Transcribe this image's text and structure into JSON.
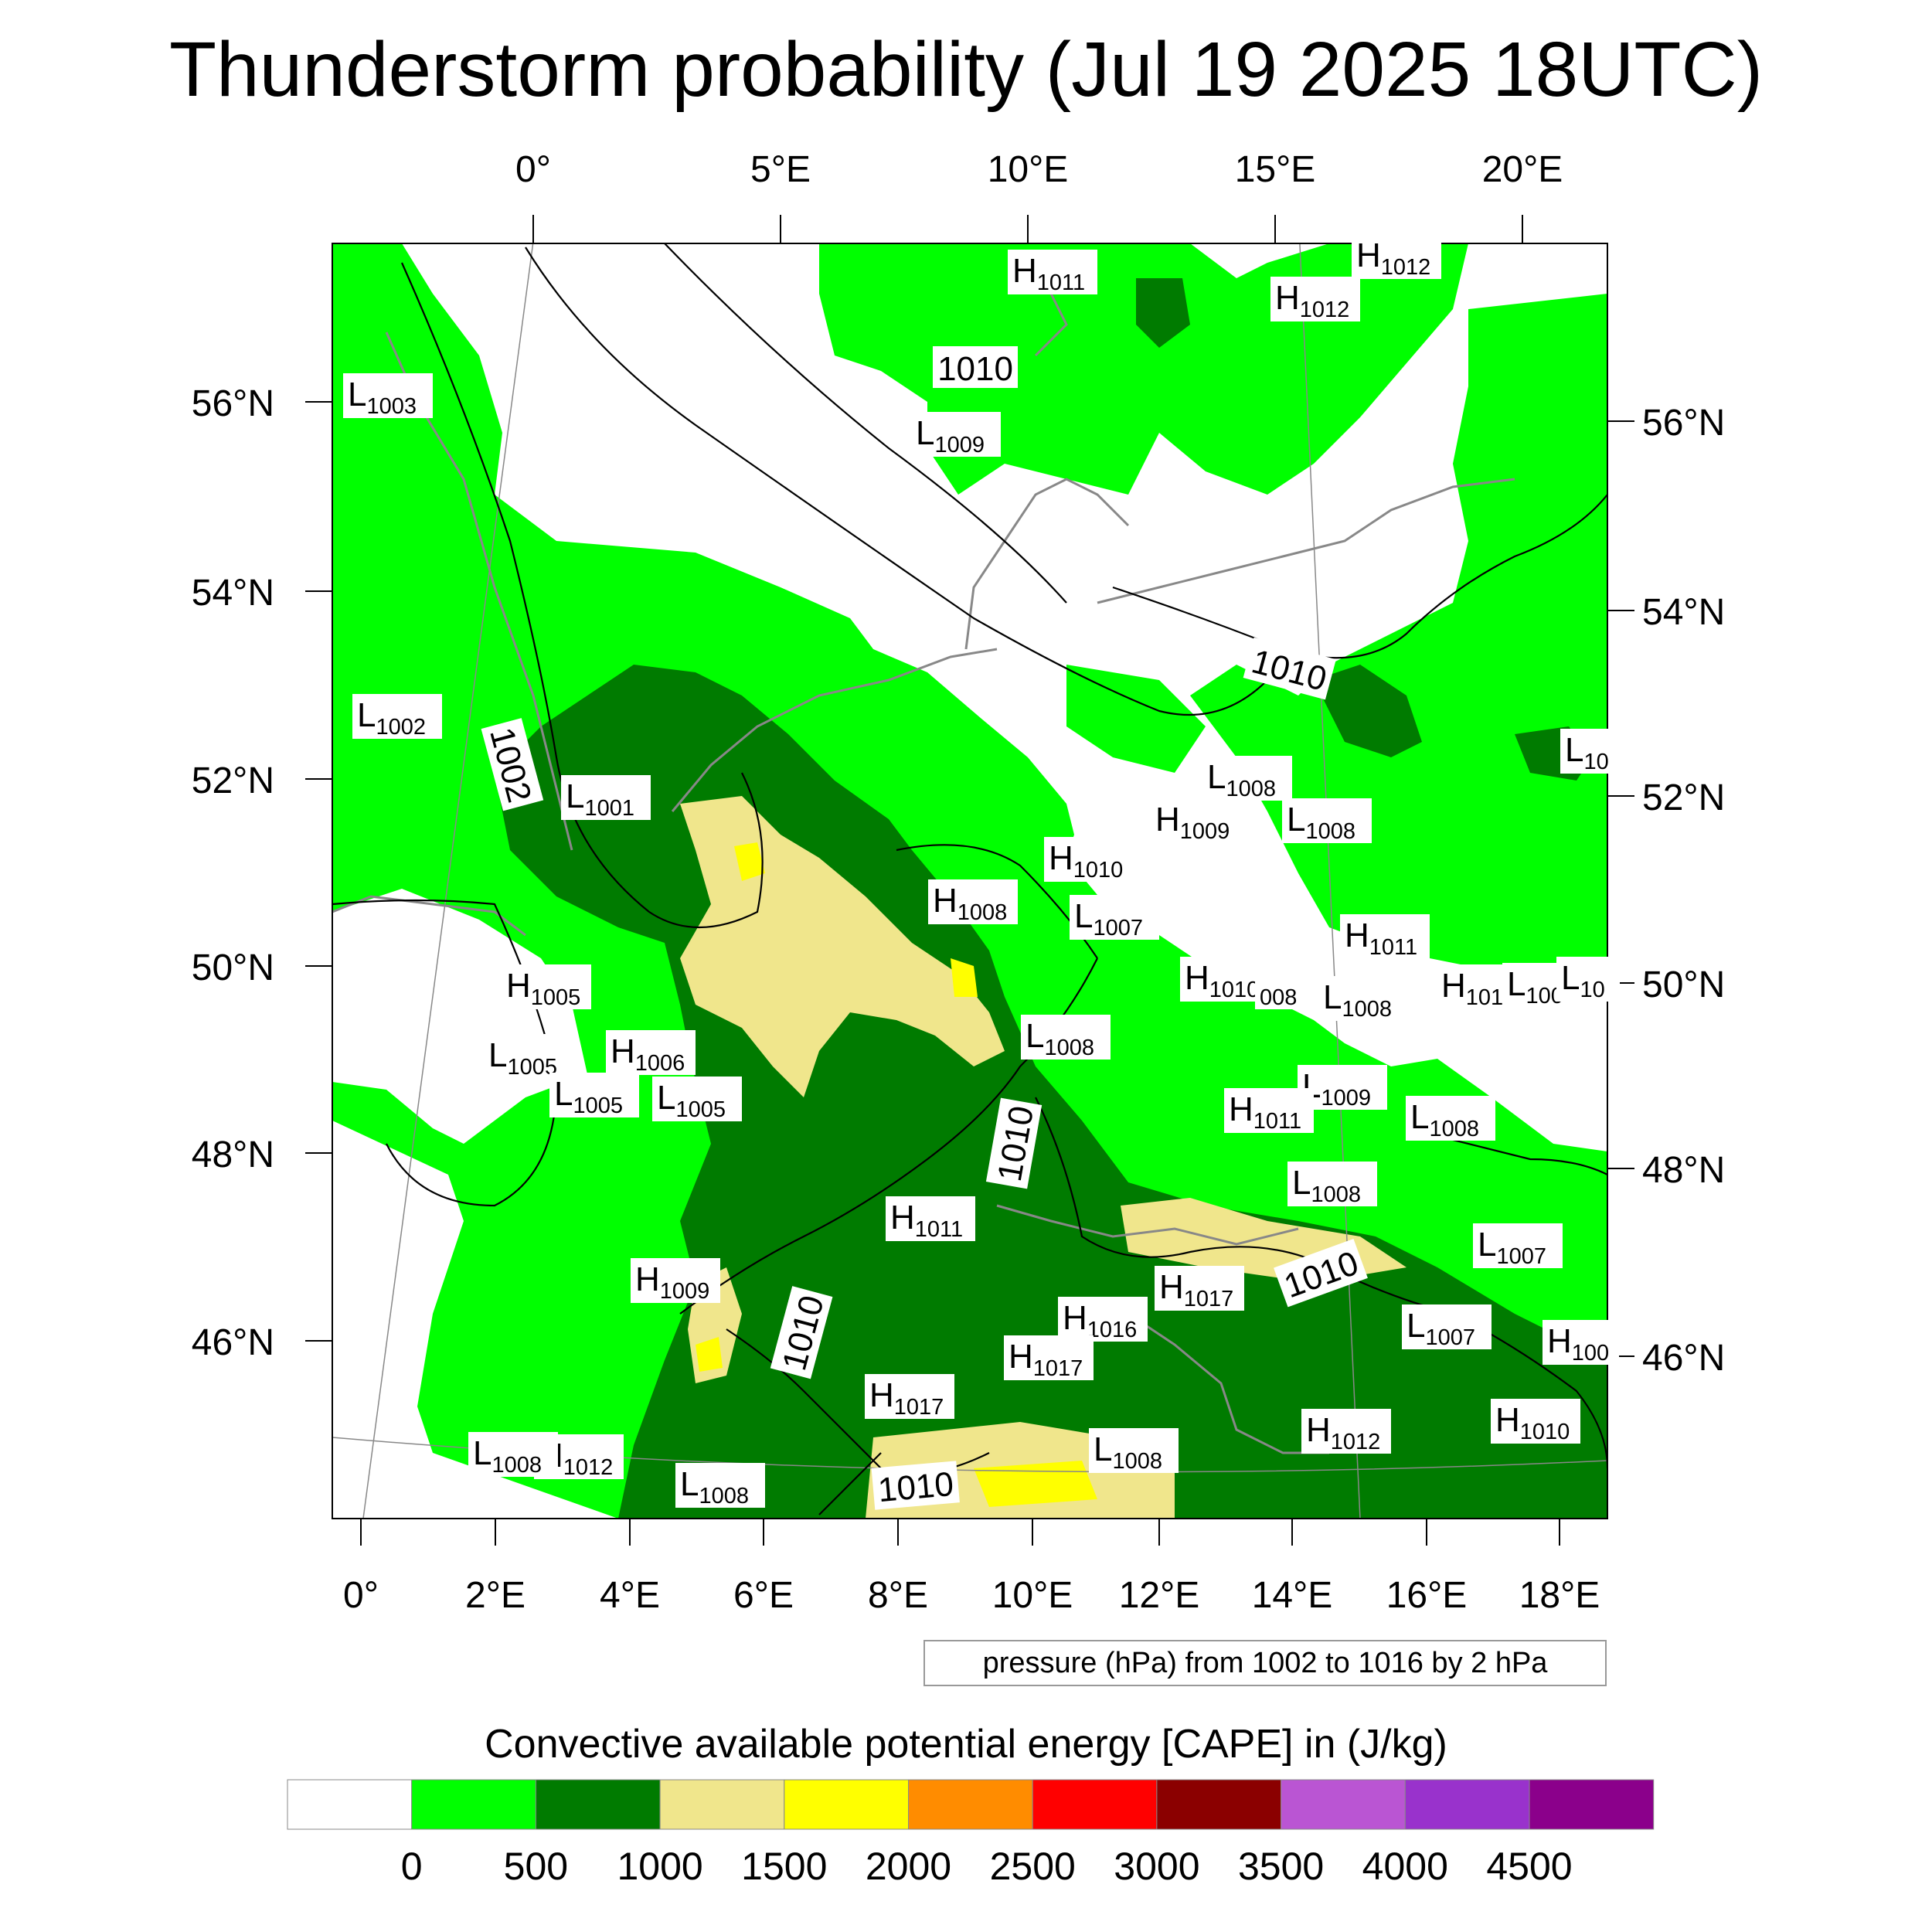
{
  "title": "Thunderstorm probability (Jul 19 2025 18UTC)",
  "colors": {
    "land_outline": "#888888",
    "pressure_contour": "#000000",
    "cape_0_500": "#00ff00",
    "cape_500_1000": "#007b00",
    "cape_1000_1500": "#f0e68c",
    "cape_1500_2000": "#ffff00"
  },
  "map": {
    "top_lon_labels": [
      "0°",
      "5°E",
      "10°E",
      "15°E",
      "20°E"
    ],
    "left_lat_labels": [
      "56°N",
      "54°N",
      "52°N",
      "50°N",
      "48°N",
      "46°N"
    ],
    "right_lat_labels": [
      "56°N",
      "54°N",
      "52°N",
      "50°N",
      "48°N",
      "46°N"
    ],
    "bottom_lon_labels": [
      "0°",
      "2°E",
      "4°E",
      "6°E",
      "8°E",
      "10°E",
      "12°E",
      "14°E",
      "16°E",
      "18°E"
    ],
    "pressure_centers": [
      {
        "letter": "H",
        "value": "1011"
      },
      {
        "letter": "H",
        "value": "1012"
      },
      {
        "letter": "H",
        "value": "1012"
      },
      {
        "letter": "L",
        "value": "1003"
      },
      {
        "letter": "L",
        "value": "1009"
      },
      {
        "letter": "L",
        "value": "1002"
      },
      {
        "letter": "L",
        "value": "1001"
      },
      {
        "letter": "L",
        "value": "1008"
      },
      {
        "letter": "H",
        "value": "1009"
      },
      {
        "letter": "L",
        "value": "1008"
      },
      {
        "letter": "L",
        "value": "10"
      },
      {
        "letter": "H",
        "value": "1010"
      },
      {
        "letter": "H",
        "value": "1008"
      },
      {
        "letter": "L",
        "value": "1007"
      },
      {
        "letter": "H",
        "value": "1011"
      },
      {
        "letter": "H",
        "value": "1010"
      },
      {
        "letter": "",
        "value": "008"
      },
      {
        "letter": "L",
        "value": "1008"
      },
      {
        "letter": "H",
        "value": "101"
      },
      {
        "letter": "L",
        "value": "100"
      },
      {
        "letter": "L",
        "value": "10"
      },
      {
        "letter": "H",
        "value": "1005"
      },
      {
        "letter": "L",
        "value": "1005"
      },
      {
        "letter": "H",
        "value": "1006"
      },
      {
        "letter": "L",
        "value": "1005"
      },
      {
        "letter": "L",
        "value": "1005"
      },
      {
        "letter": "L",
        "value": "1008"
      },
      {
        "letter": "L",
        "value": "1009"
      },
      {
        "letter": "H",
        "value": "1011"
      },
      {
        "letter": "L",
        "value": "1008"
      },
      {
        "letter": "L",
        "value": "1008"
      },
      {
        "letter": "H",
        "value": "1011"
      },
      {
        "letter": "L",
        "value": "1007"
      },
      {
        "letter": "H",
        "value": "1009"
      },
      {
        "letter": "H",
        "value": "1017"
      },
      {
        "letter": "H",
        "value": "1016"
      },
      {
        "letter": "L",
        "value": "1007"
      },
      {
        "letter": "H",
        "value": "100"
      },
      {
        "letter": "H",
        "value": "1017"
      },
      {
        "letter": "H",
        "value": "1017"
      },
      {
        "letter": "H",
        "value": "1012"
      },
      {
        "letter": "H",
        "value": "1010"
      },
      {
        "letter": "L",
        "value": "1008"
      },
      {
        "letter": "H",
        "value": "1012"
      },
      {
        "letter": "L",
        "value": "1008"
      },
      {
        "letter": "L",
        "value": "1008"
      }
    ],
    "isobar_labels": [
      "1010",
      "1002",
      "1010",
      "1010",
      "1010",
      "1010",
      "1010"
    ]
  },
  "contour_note": "pressure (hPa) from 1002 to 1016 by 2 hPa",
  "colorbar": {
    "title": "Convective available potential energy [CAPE] in (J/kg)",
    "tick_labels": [
      "0",
      "500",
      "1000",
      "1500",
      "2000",
      "2500",
      "3000",
      "3500",
      "4000",
      "4500"
    ],
    "colors": [
      "#ffffff",
      "#00ff00",
      "#007b00",
      "#f0e68c",
      "#ffff00",
      "#ff8c00",
      "#ff0000",
      "#8b0000",
      "#ba55d3",
      "#9932cc",
      "#8b008b"
    ]
  }
}
